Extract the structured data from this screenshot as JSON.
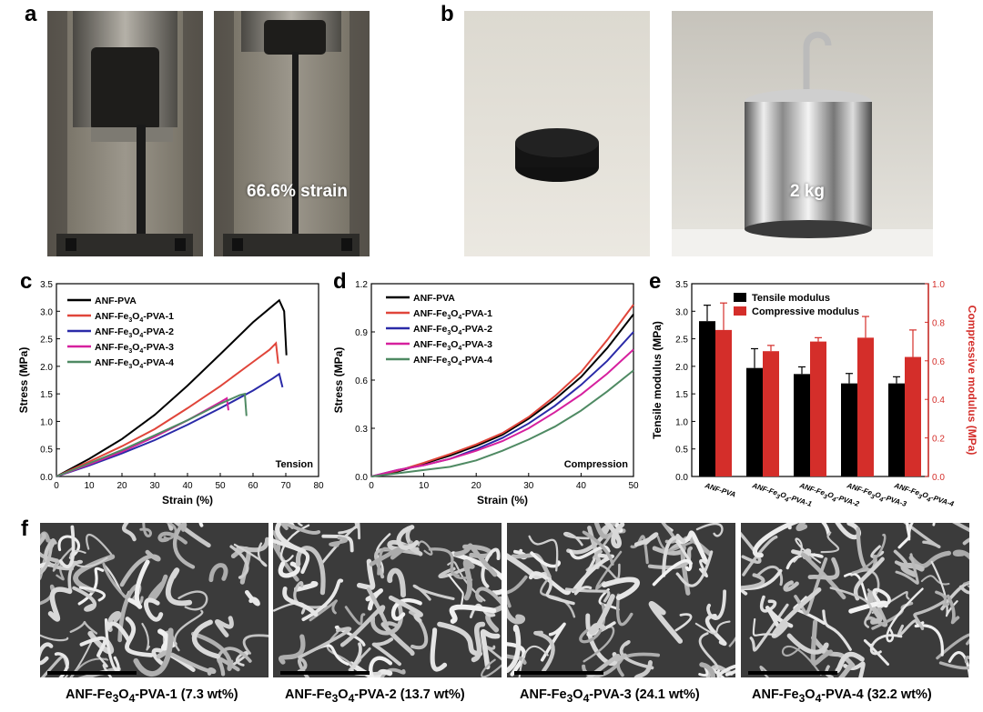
{
  "panels": {
    "a": {
      "letter": "a",
      "label": "66.6% strain"
    },
    "b": {
      "letter": "b",
      "label": "2 kg"
    },
    "c": {
      "letter": "c"
    },
    "d": {
      "letter": "d"
    },
    "e": {
      "letter": "e"
    },
    "f": {
      "letter": "f"
    }
  },
  "sem_captions": [
    {
      "pre": "ANF-Fe",
      "s1": "3",
      "mid": "O",
      "s2": "4",
      "post": "-PVA-1 (7.3 wt%)"
    },
    {
      "pre": "ANF-Fe",
      "s1": "3",
      "mid": "O",
      "s2": "4",
      "post": "-PVA-2 (13.7 wt%)"
    },
    {
      "pre": "ANF-Fe",
      "s1": "3",
      "mid": "O",
      "s2": "4",
      "post": "-PVA-3 (24.1 wt%)"
    },
    {
      "pre": "ANF-Fe",
      "s1": "3",
      "mid": "O",
      "s2": "4",
      "post": "-PVA-4 (32.2 wt%)"
    }
  ],
  "legend_names": [
    {
      "pre": "ANF-PVA",
      "s1": "",
      "mid": "",
      "s2": "",
      "post": ""
    },
    {
      "pre": "ANF-Fe",
      "s1": "3",
      "mid": "O",
      "s2": "4",
      "post": "-PVA-1"
    },
    {
      "pre": "ANF-Fe",
      "s1": "3",
      "mid": "O",
      "s2": "4",
      "post": "-PVA-2"
    },
    {
      "pre": "ANF-Fe",
      "s1": "3",
      "mid": "O",
      "s2": "4",
      "post": "-PVA-3"
    },
    {
      "pre": "ANF-Fe",
      "s1": "3",
      "mid": "O",
      "s2": "4",
      "post": "-PVA-4"
    }
  ],
  "colors": {
    "ANF-PVA": "#000000",
    "PVA-1": "#e0453a",
    "PVA-2": "#2a2aa8",
    "PVA-3": "#d6209e",
    "PVA-4": "#4f8a63",
    "tensile_bar": "#000000",
    "compressive_bar": "#d42e2a",
    "right_axis": "#d42e2a"
  },
  "chart_data": [
    {
      "type": "line",
      "panel": "c",
      "xlabel": "Strain (%)",
      "ylabel": "Stress (MPa)",
      "annotation": "Tension",
      "xlim": [
        0,
        80
      ],
      "ylim": [
        0,
        3.5
      ],
      "xticks": [
        "0",
        "10",
        "20",
        "30",
        "40",
        "50",
        "60",
        "70",
        "80"
      ],
      "yticks": [
        "0.0",
        "0.5",
        "1.0",
        "1.5",
        "2.0",
        "2.5",
        "3.0",
        "3.5"
      ],
      "series": [
        {
          "x": [
            0,
            10,
            20,
            30,
            40,
            50,
            60,
            65,
            68,
            69.5,
            70.2
          ],
          "y": [
            0,
            0.32,
            0.68,
            1.12,
            1.65,
            2.22,
            2.8,
            3.05,
            3.2,
            3.0,
            2.2
          ]
        },
        {
          "x": [
            0,
            10,
            20,
            30,
            40,
            50,
            60,
            65,
            67,
            67.7
          ],
          "y": [
            0,
            0.27,
            0.55,
            0.86,
            1.24,
            1.64,
            2.08,
            2.3,
            2.42,
            2.05
          ]
        },
        {
          "x": [
            0,
            10,
            20,
            30,
            40,
            50,
            60,
            66,
            68,
            69
          ],
          "y": [
            0,
            0.2,
            0.42,
            0.66,
            0.94,
            1.24,
            1.56,
            1.78,
            1.86,
            1.62
          ]
        },
        {
          "x": [
            0,
            10,
            20,
            30,
            40,
            50,
            52,
            52.5
          ],
          "y": [
            0,
            0.22,
            0.45,
            0.72,
            1.02,
            1.35,
            1.42,
            1.2
          ]
        },
        {
          "x": [
            0,
            10,
            20,
            30,
            40,
            50,
            56,
            57.5,
            58
          ],
          "y": [
            0,
            0.24,
            0.48,
            0.75,
            1.02,
            1.32,
            1.48,
            1.5,
            1.1
          ]
        }
      ]
    },
    {
      "type": "line",
      "panel": "d",
      "xlabel": "Strain (%)",
      "ylabel": "Stress (MPa)",
      "annotation": "Compression",
      "xlim": [
        0,
        50
      ],
      "ylim": [
        0,
        1.2
      ],
      "xticks": [
        "0",
        "10",
        "20",
        "30",
        "40",
        "50"
      ],
      "yticks": [
        "0.0",
        "0.3",
        "0.6",
        "0.9",
        "1.2"
      ],
      "series": [
        {
          "x": [
            0,
            5,
            10,
            15,
            20,
            25,
            30,
            35,
            40,
            45,
            50
          ],
          "y": [
            0,
            0.03,
            0.08,
            0.13,
            0.19,
            0.26,
            0.36,
            0.48,
            0.62,
            0.8,
            1.01
          ]
        },
        {
          "x": [
            0,
            5,
            10,
            15,
            20,
            25,
            30,
            35,
            40,
            45,
            50
          ],
          "y": [
            0,
            0.035,
            0.085,
            0.14,
            0.2,
            0.27,
            0.37,
            0.5,
            0.65,
            0.85,
            1.07
          ]
        },
        {
          "x": [
            0,
            5,
            10,
            15,
            20,
            25,
            30,
            35,
            40,
            45,
            50
          ],
          "y": [
            0,
            0.04,
            0.07,
            0.11,
            0.17,
            0.24,
            0.33,
            0.44,
            0.57,
            0.72,
            0.9
          ]
        },
        {
          "x": [
            0,
            5,
            10,
            15,
            20,
            25,
            30,
            35,
            40,
            45,
            50
          ],
          "y": [
            0,
            0.04,
            0.07,
            0.11,
            0.16,
            0.22,
            0.3,
            0.4,
            0.51,
            0.64,
            0.79
          ]
        },
        {
          "x": [
            0,
            5,
            10,
            15,
            20,
            25,
            30,
            35,
            40,
            45,
            50
          ],
          "y": [
            0,
            0.02,
            0.04,
            0.06,
            0.1,
            0.16,
            0.23,
            0.31,
            0.41,
            0.53,
            0.66
          ]
        }
      ]
    },
    {
      "type": "bar",
      "panel": "e",
      "ylabel": "Tensile modulus (MPa)",
      "ylabel2": "Compressive modulus (MPa)",
      "ylim": [
        0,
        3.5
      ],
      "ylim2": [
        0,
        1.0
      ],
      "yticks": [
        "0.0",
        "0.5",
        "1.0",
        "1.5",
        "2.0",
        "2.5",
        "3.0",
        "3.5"
      ],
      "yticks2": [
        "0.0",
        "0.2",
        "0.4",
        "0.6",
        "0.8",
        "1.0"
      ],
      "categories": [
        {
          "pre": "ANF-PVA",
          "s1": "",
          "mid": "",
          "s2": "",
          "post": ""
        },
        {
          "pre": "ANF-Fe",
          "s1": "3",
          "mid": "O",
          "s2": "4",
          "post": "-PVA-1"
        },
        {
          "pre": "ANF-Fe",
          "s1": "3",
          "mid": "O",
          "s2": "4",
          "post": "-PVA-2"
        },
        {
          "pre": "ANF-Fe",
          "s1": "3",
          "mid": "O",
          "s2": "4",
          "post": "-PVA-3"
        },
        {
          "pre": "ANF-Fe",
          "s1": "3",
          "mid": "O",
          "s2": "4",
          "post": "-PVA-4"
        }
      ],
      "series": [
        {
          "name": "Tensile modulus",
          "axis": "left",
          "values": [
            2.82,
            1.97,
            1.86,
            1.69,
            1.69
          ],
          "errors": [
            0.29,
            0.35,
            0.13,
            0.18,
            0.12
          ]
        },
        {
          "name": "Compressive modulus",
          "axis": "right",
          "values": [
            0.76,
            0.65,
            0.7,
            0.72,
            0.62
          ],
          "errors": [
            0.14,
            0.03,
            0.02,
            0.11,
            0.14
          ]
        }
      ]
    }
  ]
}
